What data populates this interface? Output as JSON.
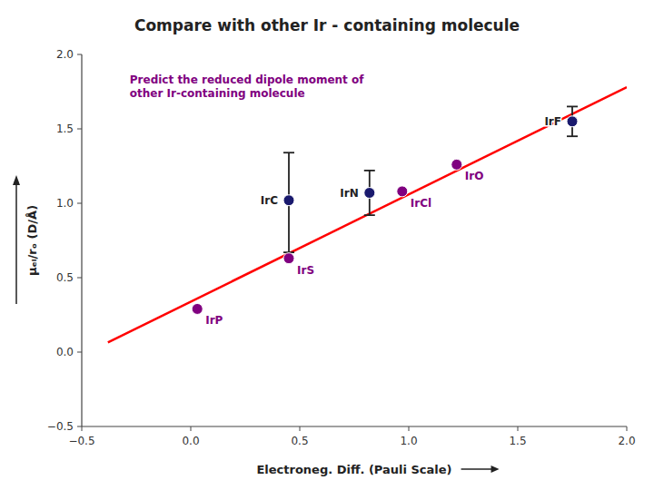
{
  "chart_data": {
    "type": "scatter",
    "title": "Compare with other Ir - containing molecule",
    "x_label": "Electroneg. Diff. (Pauli Scale)",
    "y_label": "μₑₗ/rₒ (D/Å)",
    "xlim": [
      -0.5,
      2.0
    ],
    "ylim": [
      -0.5,
      2.0
    ],
    "xticks": [
      {
        "value": -0.5,
        "label": "−0.5"
      },
      {
        "value": 0.0,
        "label": "0.0"
      },
      0.5,
      {
        "value": 1.0,
        "label": "1.0"
      },
      1.5,
      {
        "value": 2.0,
        "label": "2.0"
      }
    ],
    "yticks": [
      {
        "value": -0.5,
        "label": "−0.5"
      },
      {
        "value": 0.0,
        "label": "0.0"
      },
      0.5,
      {
        "value": 1.0,
        "label": "1.0"
      },
      1.5,
      {
        "value": 2.0,
        "label": "2.0"
      }
    ],
    "grid": false,
    "series": [
      {
        "type": "scatter",
        "color": "#1a1a6e",
        "x": [
          0.45,
          0.82,
          1.75
        ],
        "values": [
          1.02,
          1.07,
          1.55
        ],
        "error_low": [
          0.35,
          0.15,
          0.1
        ],
        "error_high": [
          0.32,
          0.15,
          0.1
        ],
        "labels": [
          "IrC",
          "IrN",
          "IrF"
        ]
      },
      {
        "type": "scatter",
        "color": "purple",
        "x": [
          0.03,
          0.45,
          0.97,
          1.22
        ],
        "values": [
          0.29,
          0.63,
          1.08,
          1.26
        ],
        "labels": [
          "IrP",
          "IrS",
          "IrCl",
          "IrO"
        ]
      },
      {
        "type": "line",
        "color": "red",
        "x": [
          -0.38,
          2.0
        ],
        "values": [
          0.065,
          1.78
        ]
      }
    ],
    "annotations": [
      {
        "text": "Predict the reduced dipole moment of\nother Ir-containing molecule",
        "x": -0.28,
        "y": 1.88
      }
    ]
  }
}
